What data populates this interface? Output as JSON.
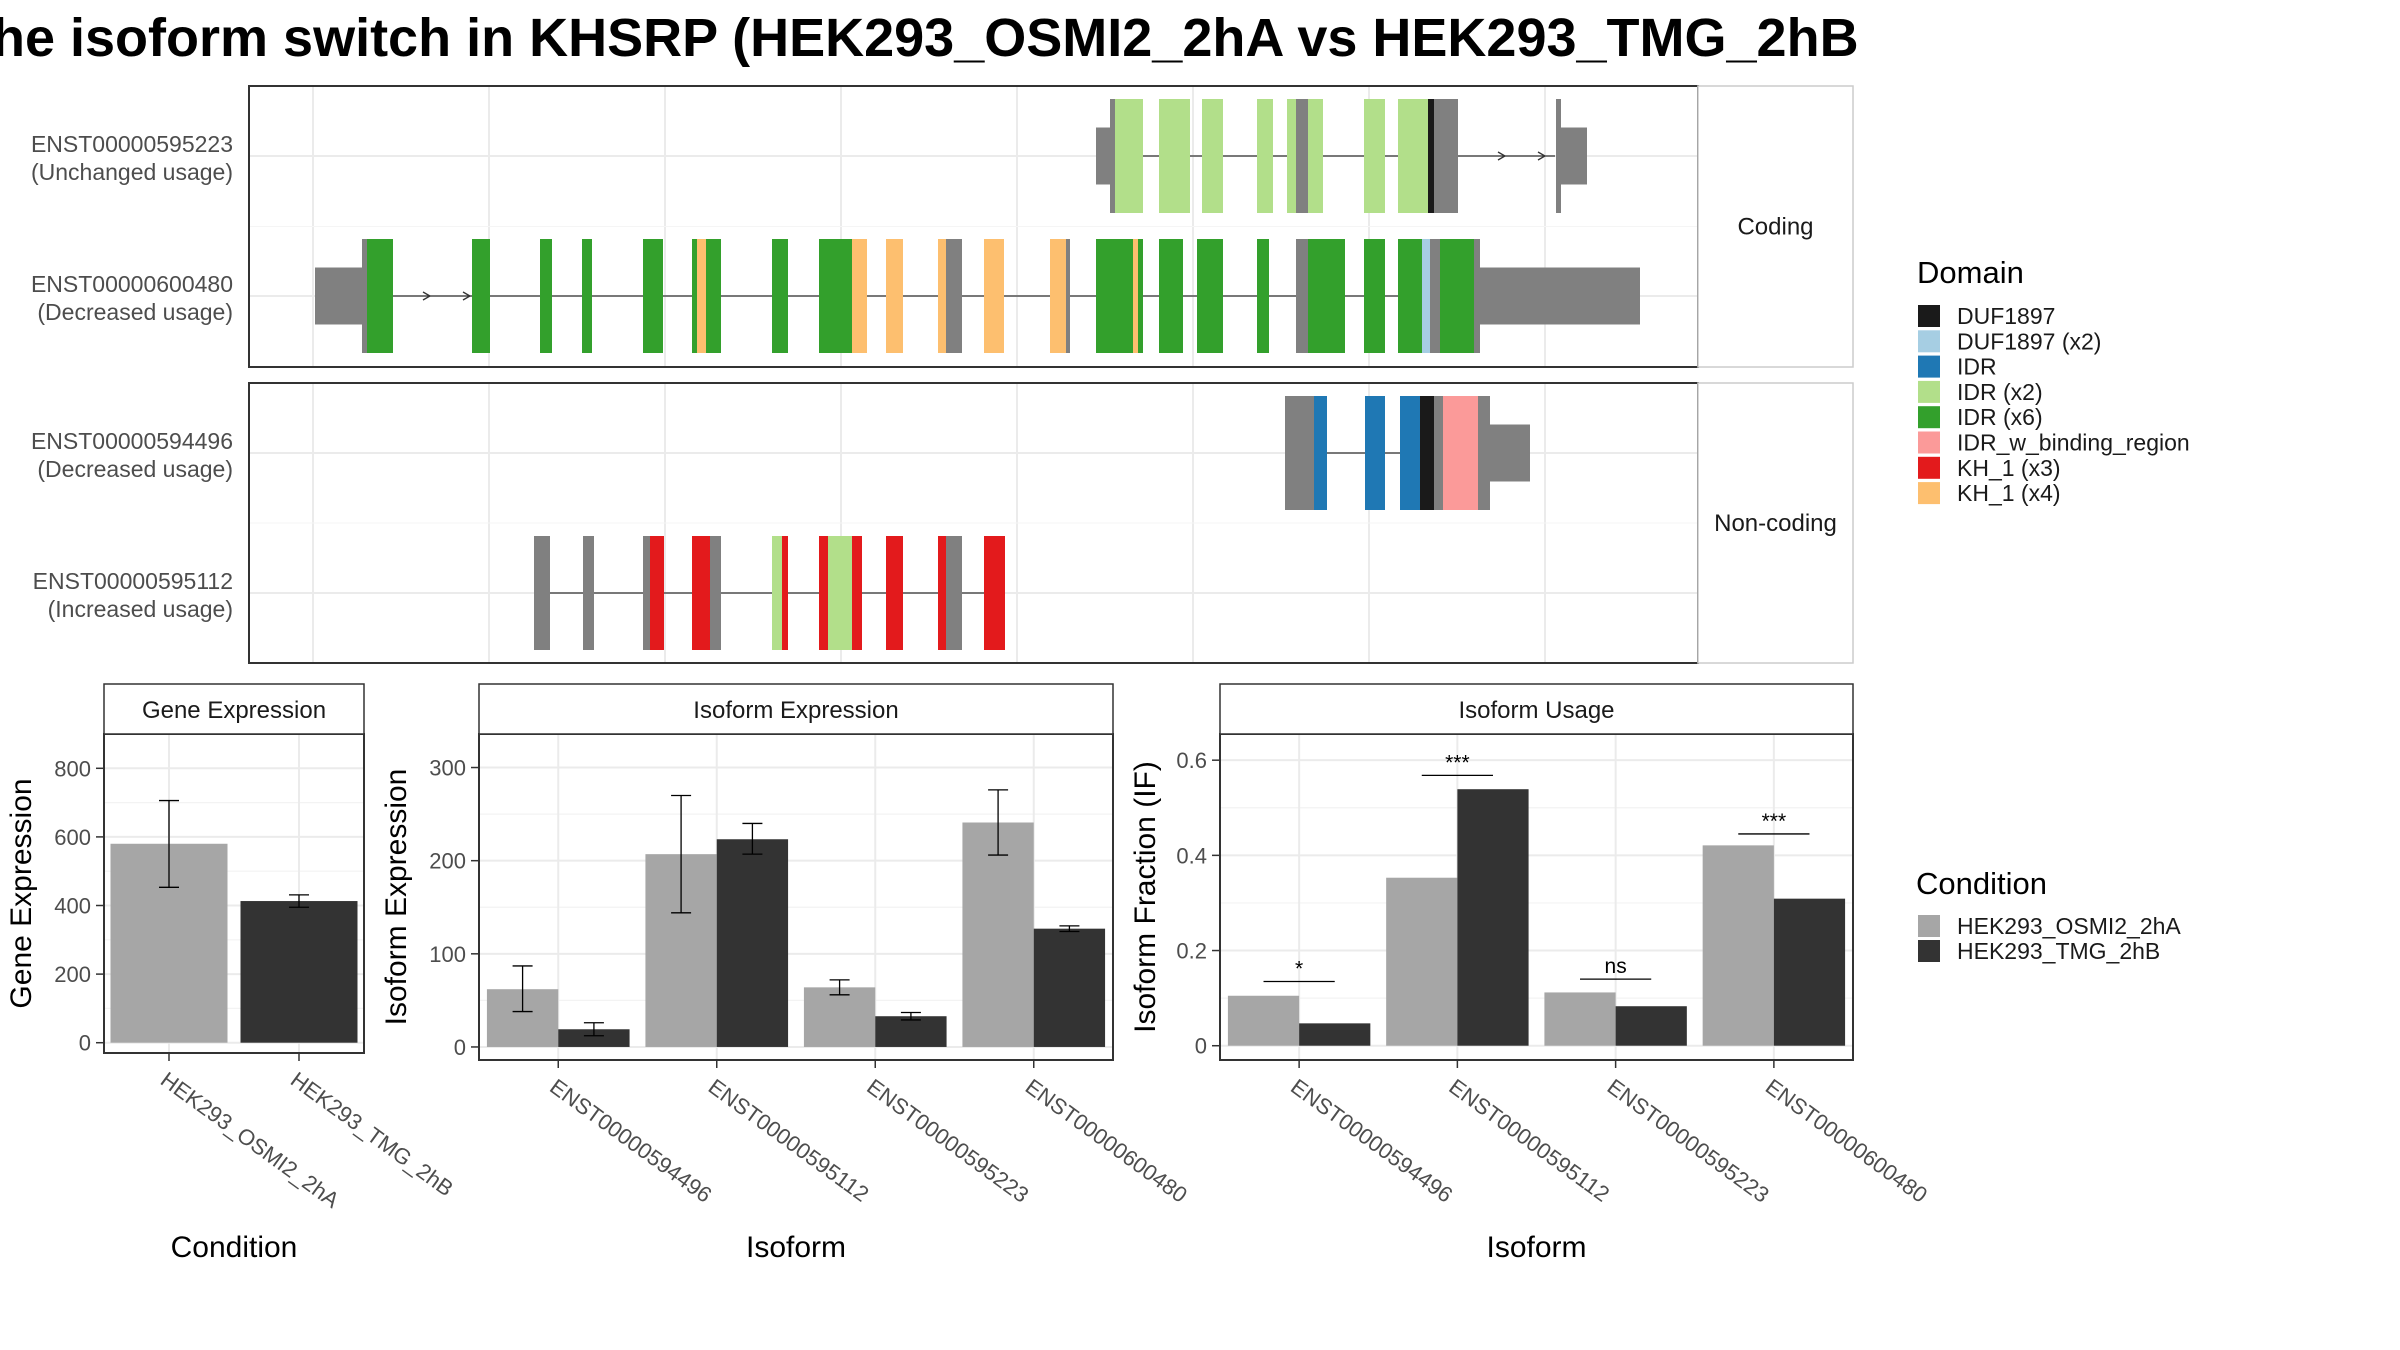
{
  "title": "he isoform switch in KHSRP (HEK293_OSMI2_2hA vs HEK293_TMG_2hB",
  "colors": {
    "utr": "#808080",
    "DUF1897": "#1a1a1a",
    "DUF1897 (x2)": "#a6cee3",
    "IDR": "#1f78b4",
    "IDR (x2)": "#b2df8a",
    "IDR (x6)": "#33a02c",
    "IDR_w_binding_region": "#fb9a99",
    "KH_1 (x3)": "#e31a1c",
    "KH_1 (x4)": "#fdbf6f",
    "cond_a": "#a6a6a6",
    "cond_b": "#333333"
  },
  "structure": {
    "panels": [
      {
        "strip": "Coding",
        "isoforms": [
          {
            "id": "ENST00000595223",
            "usage": "(Unchanged usage)",
            "intron": [
              1110,
              1555
            ],
            "arrows": [
              1505,
              1545
            ],
            "blocks": [
              [
                1096,
                1110,
                "utr",
                1
              ],
              [
                1110,
                1115,
                "utr",
                0
              ],
              [
                1115,
                1143,
                "IDR (x2)",
                0
              ],
              [
                1159,
                1190,
                "IDR (x2)",
                0
              ],
              [
                1202,
                1223,
                "IDR (x2)",
                0
              ],
              [
                1257,
                1273,
                "IDR (x2)",
                0
              ],
              [
                1287,
                1296,
                "IDR (x2)",
                0
              ],
              [
                1296,
                1308,
                "utr",
                0
              ],
              [
                1308,
                1323,
                "IDR (x2)",
                0
              ],
              [
                1364,
                1385,
                "IDR (x2)",
                0
              ],
              [
                1398,
                1428,
                "IDR (x2)",
                0
              ],
              [
                1428,
                1434,
                "DUF1897",
                0
              ],
              [
                1434,
                1458,
                "utr",
                0
              ],
              [
                1556,
                1561,
                "utr",
                0
              ],
              [
                1561,
                1587,
                "utr",
                1
              ]
            ]
          },
          {
            "id": "ENST00000600480",
            "usage": "(Decreased usage)",
            "intron": [
              360,
              1480
            ],
            "arrows": [
              430,
              470
            ],
            "blocks": [
              [
                315,
                362,
                "utr",
                1
              ],
              [
                362,
                367,
                "utr",
                0
              ],
              [
                367,
                393,
                "IDR (x6)",
                0
              ],
              [
                472,
                490,
                "IDR (x6)",
                0
              ],
              [
                540,
                552,
                "IDR (x6)",
                0
              ],
              [
                582,
                592,
                "IDR (x6)",
                0
              ],
              [
                643,
                663,
                "IDR (x6)",
                0
              ],
              [
                692,
                697,
                "IDR (x6)",
                0
              ],
              [
                697,
                706,
                "KH_1 (x4)",
                0
              ],
              [
                706,
                721,
                "IDR (x6)",
                0
              ],
              [
                772,
                788,
                "IDR (x6)",
                0
              ],
              [
                819,
                852,
                "IDR (x6)",
                0
              ],
              [
                852,
                867,
                "KH_1 (x4)",
                0
              ],
              [
                886,
                903,
                "KH_1 (x4)",
                0
              ],
              [
                938,
                946,
                "KH_1 (x4)",
                0
              ],
              [
                946,
                962,
                "utr",
                0
              ],
              [
                984,
                1004,
                "KH_1 (x4)",
                0
              ],
              [
                1050,
                1066,
                "KH_1 (x4)",
                0
              ],
              [
                1066,
                1070,
                "utr",
                0
              ],
              [
                1096,
                1133,
                "IDR (x6)",
                0
              ],
              [
                1133,
                1138,
                "KH_1 (x4)",
                0
              ],
              [
                1138,
                1143,
                "IDR (x6)",
                0
              ],
              [
                1159,
                1183,
                "IDR (x6)",
                0
              ],
              [
                1197,
                1223,
                "IDR (x6)",
                0
              ],
              [
                1257,
                1269,
                "IDR (x6)",
                0
              ],
              [
                1296,
                1308,
                "utr",
                0
              ],
              [
                1308,
                1345,
                "IDR (x6)",
                0
              ],
              [
                1364,
                1385,
                "IDR (x6)",
                0
              ],
              [
                1398,
                1422,
                "IDR (x6)",
                0
              ],
              [
                1422,
                1430,
                "DUF1897 (x2)",
                0
              ],
              [
                1430,
                1440,
                "utr",
                0
              ],
              [
                1440,
                1474,
                "IDR (x6)",
                0
              ],
              [
                1474,
                1480,
                "utr",
                0
              ],
              [
                1480,
                1640,
                "utr",
                1
              ]
            ]
          }
        ]
      },
      {
        "strip": "Non-coding",
        "isoforms": [
          {
            "id": "ENST00000594496",
            "usage": "(Decreased usage)",
            "intron": [
              1285,
              1490
            ],
            "arrows": [],
            "blocks": [
              [
                1285,
                1314,
                "utr",
                0
              ],
              [
                1314,
                1327,
                "IDR",
                0
              ],
              [
                1365,
                1385,
                "IDR",
                0
              ],
              [
                1400,
                1420,
                "IDR",
                0
              ],
              [
                1420,
                1434,
                "DUF1897",
                0
              ],
              [
                1434,
                1443,
                "utr",
                0
              ],
              [
                1443,
                1478,
                "IDR_w_binding_region",
                0
              ],
              [
                1478,
                1490,
                "utr",
                0
              ],
              [
                1490,
                1530,
                "utr",
                1
              ]
            ]
          },
          {
            "id": "ENST00000595112",
            "usage": "(Increased usage)",
            "intron": [
              534,
              1005
            ],
            "arrows": [],
            "blocks": [
              [
                534,
                550,
                "utr",
                0
              ],
              [
                583,
                594,
                "utr",
                0
              ],
              [
                643,
                650,
                "utr",
                0
              ],
              [
                650,
                664,
                "KH_1 (x3)",
                0
              ],
              [
                692,
                710,
                "KH_1 (x3)",
                0
              ],
              [
                710,
                721,
                "utr",
                0
              ],
              [
                772,
                782,
                "IDR (x2)",
                0
              ],
              [
                782,
                788,
                "KH_1 (x3)",
                0
              ],
              [
                819,
                828,
                "KH_1 (x3)",
                0
              ],
              [
                828,
                852,
                "IDR (x2)",
                0
              ],
              [
                852,
                862,
                "KH_1 (x3)",
                0
              ],
              [
                886,
                903,
                "KH_1 (x3)",
                0
              ],
              [
                938,
                946,
                "KH_1 (x3)",
                0
              ],
              [
                946,
                962,
                "utr",
                0
              ],
              [
                984,
                1005,
                "KH_1 (x3)",
                0
              ]
            ]
          }
        ]
      }
    ]
  },
  "legend_domain": {
    "title": "Domain",
    "items": [
      "DUF1897",
      "DUF1897 (x2)",
      "IDR",
      "IDR (x2)",
      "IDR (x6)",
      "IDR_w_binding_region",
      "KH_1 (x3)",
      "KH_1 (x4)"
    ]
  },
  "legend_condition": {
    "title": "Condition",
    "items": [
      "HEK293_OSMI2_2hA",
      "HEK293_TMG_2hB"
    ]
  },
  "chart_data": [
    {
      "type": "bar",
      "strip": "Gene Expression",
      "xlabel": "Condition",
      "ylabel": "Gene Expression",
      "categories": [
        "HEK293_OSMI2_2hA",
        "HEK293_TMG_2hB"
      ],
      "values": [
        580,
        413
      ],
      "err_low": [
        453,
        395
      ],
      "err_high": [
        706,
        431
      ],
      "yticks": [
        0,
        200,
        400,
        600,
        800
      ],
      "ylim": [
        -30,
        900
      ]
    },
    {
      "type": "bar",
      "strip": "Isoform Expression",
      "xlabel": "Isoform",
      "ylabel": "Isoform Expression",
      "categories": [
        "ENST00000594496",
        "ENST00000595112",
        "ENST00000595223",
        "ENST00000600480"
      ],
      "series": [
        {
          "name": "HEK293_OSMI2_2hA",
          "values": [
            62,
            207,
            64,
            241
          ],
          "err_low": [
            38,
            144,
            56,
            206
          ],
          "err_high": [
            87,
            270,
            72,
            276
          ]
        },
        {
          "name": "HEK293_TMG_2hB",
          "values": [
            19,
            223,
            33,
            127
          ],
          "err_low": [
            12,
            207,
            29,
            124
          ],
          "err_high": [
            26,
            240,
            37,
            130
          ]
        }
      ],
      "yticks": [
        0,
        100,
        200,
        300
      ],
      "ylim": [
        -14,
        336
      ]
    },
    {
      "type": "bar",
      "strip": "Isoform Usage",
      "xlabel": "Isoform",
      "ylabel": "Isoform Fraction (IF)",
      "categories": [
        "ENST00000594496",
        "ENST00000595112",
        "ENST00000595223",
        "ENST00000600480"
      ],
      "series": [
        {
          "name": "HEK293_OSMI2_2hA",
          "values": [
            0.105,
            0.353,
            0.112,
            0.421
          ]
        },
        {
          "name": "HEK293_TMG_2hB",
          "values": [
            0.047,
            0.539,
            0.083,
            0.309
          ]
        }
      ],
      "significance": [
        {
          "label": "*",
          "y": 0.135
        },
        {
          "label": "***",
          "y": 0.568
        },
        {
          "label": "ns",
          "y": 0.14
        },
        {
          "label": "***",
          "y": 0.445
        }
      ],
      "yticks": [
        0.0,
        0.2,
        0.4,
        0.6
      ],
      "ylim": [
        -0.03,
        0.655
      ]
    }
  ]
}
